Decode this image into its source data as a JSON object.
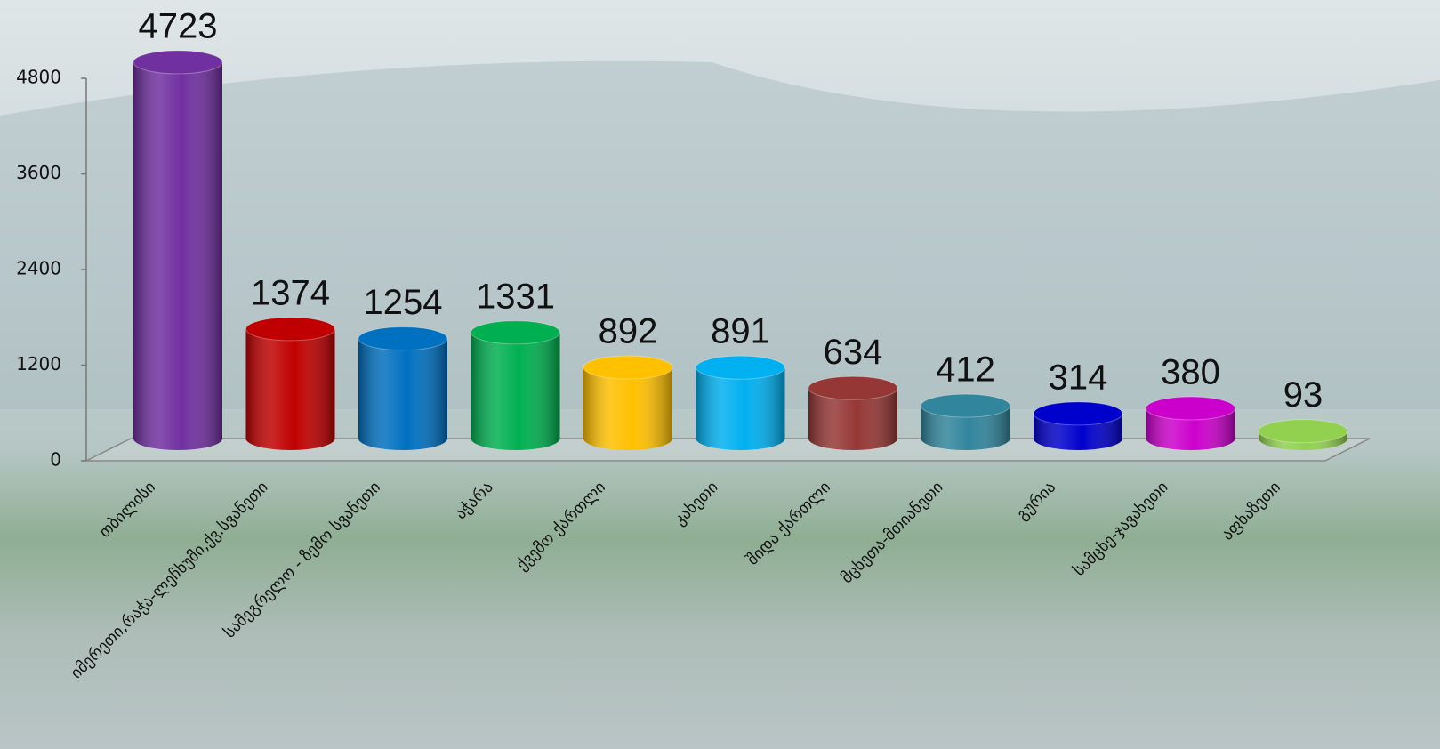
{
  "chart_data": {
    "type": "bar",
    "categories": [
      "თბილისი",
      "იმერეთი,რაჭა-ლეჩხუმი,ქვ.სვანეთი",
      "სამეგრელო - ზემო სვანეთი",
      "აჭარა",
      "ქვემო ქართლი",
      "კახეთი",
      "შიდა ქართლი",
      "მცხეთა-მთიანეთი",
      "გურია",
      "სამცხე-ჯავახეთი",
      "აფხაზეთი"
    ],
    "values": [
      4723,
      1374,
      1254,
      1331,
      892,
      891,
      634,
      412,
      314,
      380,
      93
    ],
    "colors": [
      "#7030a0",
      "#c00000",
      "#0070c0",
      "#00b050",
      "#ffc000",
      "#00b0f0",
      "#953735",
      "#31859c",
      "#0000cc",
      "#cc00cc",
      "#92d050"
    ],
    "ylim": [
      0,
      4800
    ],
    "yticks": [
      0,
      1200,
      2400,
      3600,
      4800
    ],
    "grid": false
  }
}
